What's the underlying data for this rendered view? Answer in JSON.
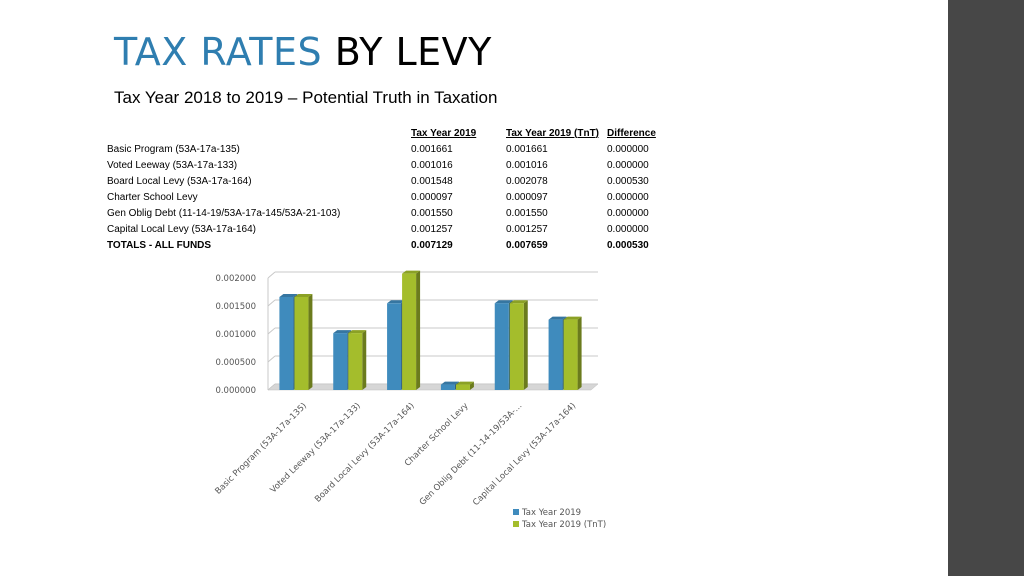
{
  "slide": {
    "title_accent": "TAX RATES",
    "title_rest": "BY LEVY",
    "subtitle": "Tax Year 2018 to 2019 – Potential Truth in Taxation"
  },
  "table": {
    "headers": [
      "",
      "Tax Year 2019",
      "Tax Year 2019 (TnT)",
      "Difference"
    ],
    "rows": [
      [
        "Basic Program (53A-17a-135)",
        "0.001661",
        "0.001661",
        "0.000000"
      ],
      [
        "Voted Leeway (53A-17a-133)",
        "0.001016",
        "0.001016",
        "0.000000"
      ],
      [
        "Board Local Levy (53A-17a-164)",
        "0.001548",
        "0.002078",
        "0.000530"
      ],
      [
        "Charter School Levy",
        "0.000097",
        "0.000097",
        "0.000000"
      ],
      [
        "Gen Oblig Debt (11-14-19/53A-17a-145/53A-21-103)",
        "0.001550",
        "0.001550",
        "0.000000"
      ],
      [
        "Capital Local Levy (53A-17a-164)",
        "0.001257",
        "0.001257",
        "0.000000"
      ]
    ],
    "total": [
      "TOTALS - ALL FUNDS",
      "0.007129",
      "0.007659",
      "0.000530"
    ]
  },
  "chart_data": {
    "type": "bar",
    "title": "",
    "xlabel": "",
    "ylabel": "",
    "categories": [
      "Basic Program (53A-17a-135)",
      "Voted Leeway (53A-17a-133)",
      "Board Local Levy (53A-17a-164)",
      "Charter School Levy",
      "Gen Oblig Debt (11-14-19/53A-…",
      "Capital Local Levy (53A-17a-164)"
    ],
    "series": [
      {
        "name": "Tax Year 2019",
        "color": "#3f8bbd",
        "values": [
          0.001661,
          0.001016,
          0.001548,
          9.7e-05,
          0.00155,
          0.001257
        ]
      },
      {
        "name": "Tax Year 2019 (TnT)",
        "color": "#a4bd2c",
        "values": [
          0.001661,
          0.001016,
          0.002078,
          9.7e-05,
          0.00155,
          0.001257
        ]
      }
    ],
    "yticks": [
      "0.000000",
      "0.000500",
      "0.001000",
      "0.001500",
      "0.002000"
    ],
    "ylim": [
      0,
      0.002
    ],
    "grid": true,
    "legend_position": "bottom"
  }
}
